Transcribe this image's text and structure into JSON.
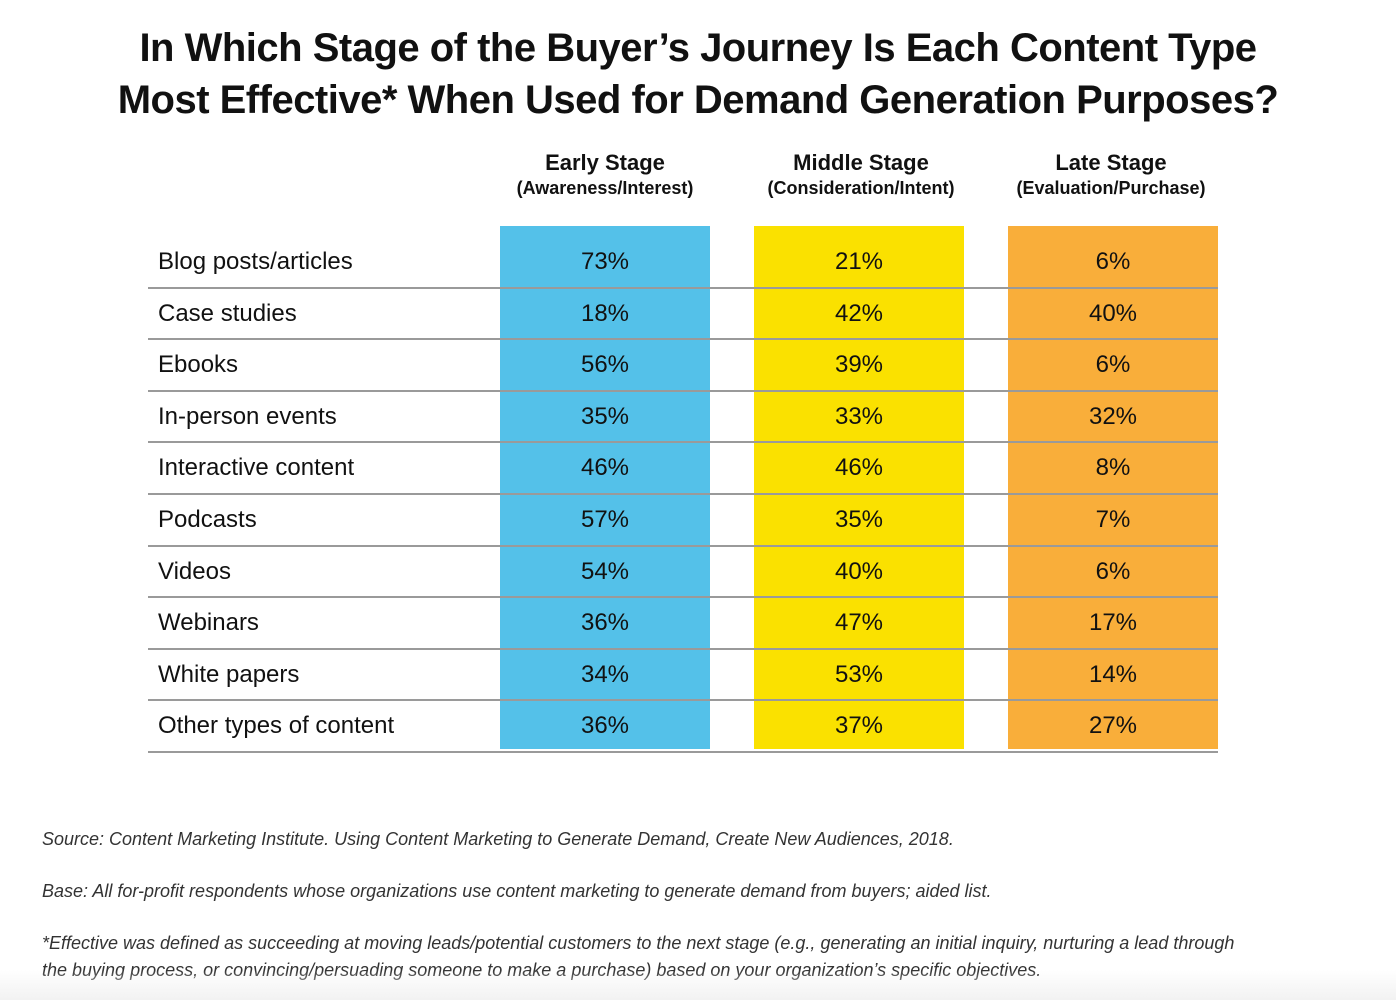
{
  "chart_data": {
    "type": "table",
    "title_line1": "In Which Stage of the Buyer’s Journey Is Each Content Type",
    "title_line2": "Most Effective* When Used for Demand Generation Purposes?",
    "columns": [
      {
        "name": "Early Stage",
        "sub": "(Awareness/Interest)",
        "color": "#54C1E9"
      },
      {
        "name": "Middle Stage",
        "sub": "(Consideration/Intent)",
        "color": "#FAE100"
      },
      {
        "name": "Late Stage",
        "sub": "(Evaluation/Purchase)",
        "color": "#F9AE3A"
      }
    ],
    "rows": [
      {
        "label": "Blog posts/articles",
        "values": [
          "73%",
          "21%",
          "6%"
        ]
      },
      {
        "label": "Case studies",
        "values": [
          "18%",
          "42%",
          "40%"
        ]
      },
      {
        "label": "Ebooks",
        "values": [
          "56%",
          "39%",
          "6%"
        ]
      },
      {
        "label": "In-person events",
        "values": [
          "35%",
          "33%",
          "32%"
        ]
      },
      {
        "label": "Interactive content",
        "values": [
          "46%",
          "46%",
          "8%"
        ]
      },
      {
        "label": "Podcasts",
        "values": [
          "57%",
          "35%",
          "7%"
        ]
      },
      {
        "label": "Videos",
        "values": [
          "54%",
          "40%",
          "6%"
        ]
      },
      {
        "label": "Webinars",
        "values": [
          "36%",
          "47%",
          "17%"
        ]
      },
      {
        "label": "White papers",
        "values": [
          "34%",
          "53%",
          "14%"
        ]
      },
      {
        "label": "Other types of content",
        "values": [
          "36%",
          "37%",
          "27%"
        ]
      }
    ]
  },
  "notes": {
    "source": "Source: Content Marketing Institute. Using Content Marketing to Generate Demand, Create New Audiences, 2018.",
    "base": "Base: All for-profit respondents whose organizations use content marketing to generate demand from buyers; aided list.",
    "footnote_line1": "*Effective was defined as succeeding at moving leads/potential customers to the next stage (e.g., generating an initial inquiry, nurturing a lead through",
    "footnote_line2": "the buying process, or convincing/persuading someone to make a purchase) based on your organization’s specific objectives."
  }
}
